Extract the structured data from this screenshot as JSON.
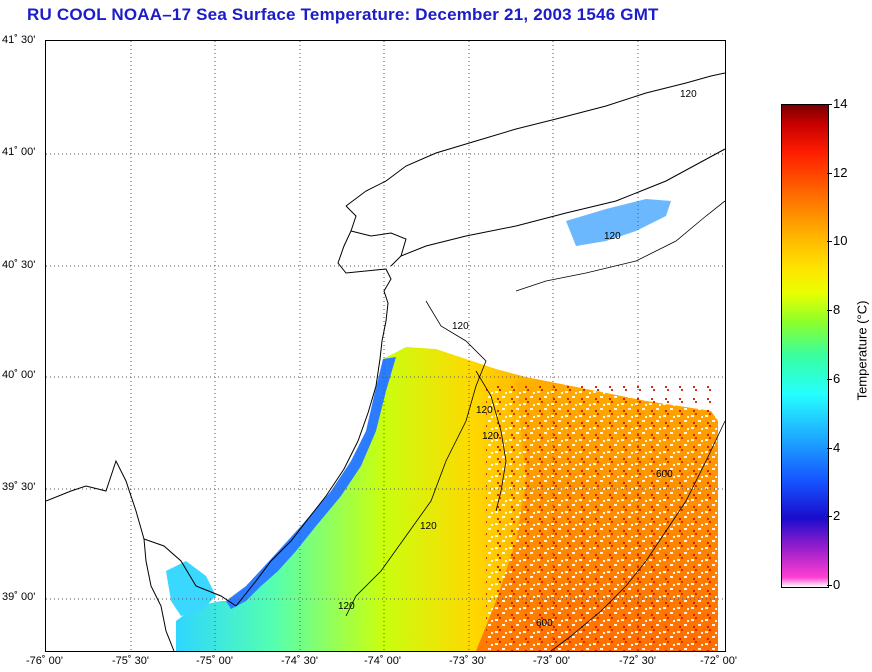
{
  "title": "RU COOL  NOAA–17  Sea Surface Temperature:  December 21, 2003 1546 GMT",
  "map": {
    "lat_labels": [
      "41˚ 30'",
      "41˚ 00'",
      "40˚ 30'",
      "40˚ 00'",
      "39˚ 30'",
      "39˚ 00'"
    ],
    "lon_labels": [
      "-76˚ 00'",
      "-75˚ 30'",
      "-75˚ 00'",
      "-74˚ 30'",
      "-74˚ 00'",
      "-73˚ 30'",
      "-73˚ 00'",
      "-72˚ 30'",
      "-72˚ 00'"
    ],
    "isobath_labels": [
      "120",
      "120",
      "120",
      "120",
      "120",
      "120",
      "120",
      "600",
      "600"
    ]
  },
  "colorbar": {
    "label": "Temperature (°C)",
    "ticks": [
      "14",
      "12",
      "10",
      "8",
      "6",
      "4",
      "2",
      "0"
    ],
    "range": [
      0,
      14
    ]
  }
}
